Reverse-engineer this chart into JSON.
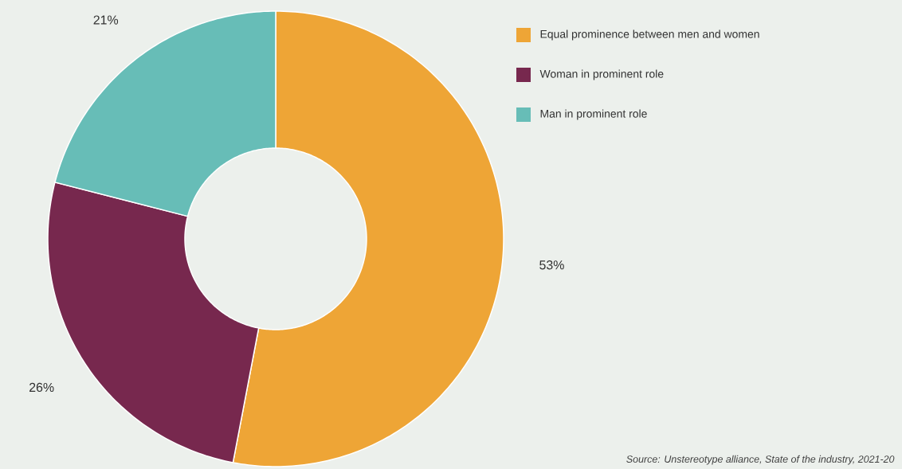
{
  "chart_data": {
    "type": "donut",
    "categories": [
      "Equal prominence between men and women",
      "Woman in prominent role",
      "Man in prominent role"
    ],
    "values": [
      53,
      26,
      21
    ],
    "colors": [
      "#eea536",
      "#77284e",
      "#67bdb7"
    ],
    "value_labels": [
      "53%",
      "26%",
      "21%"
    ],
    "legend": "top right",
    "annotations": [
      "Source: Unstereotype alliance, State of the industry, 2021-20"
    ]
  }
}
